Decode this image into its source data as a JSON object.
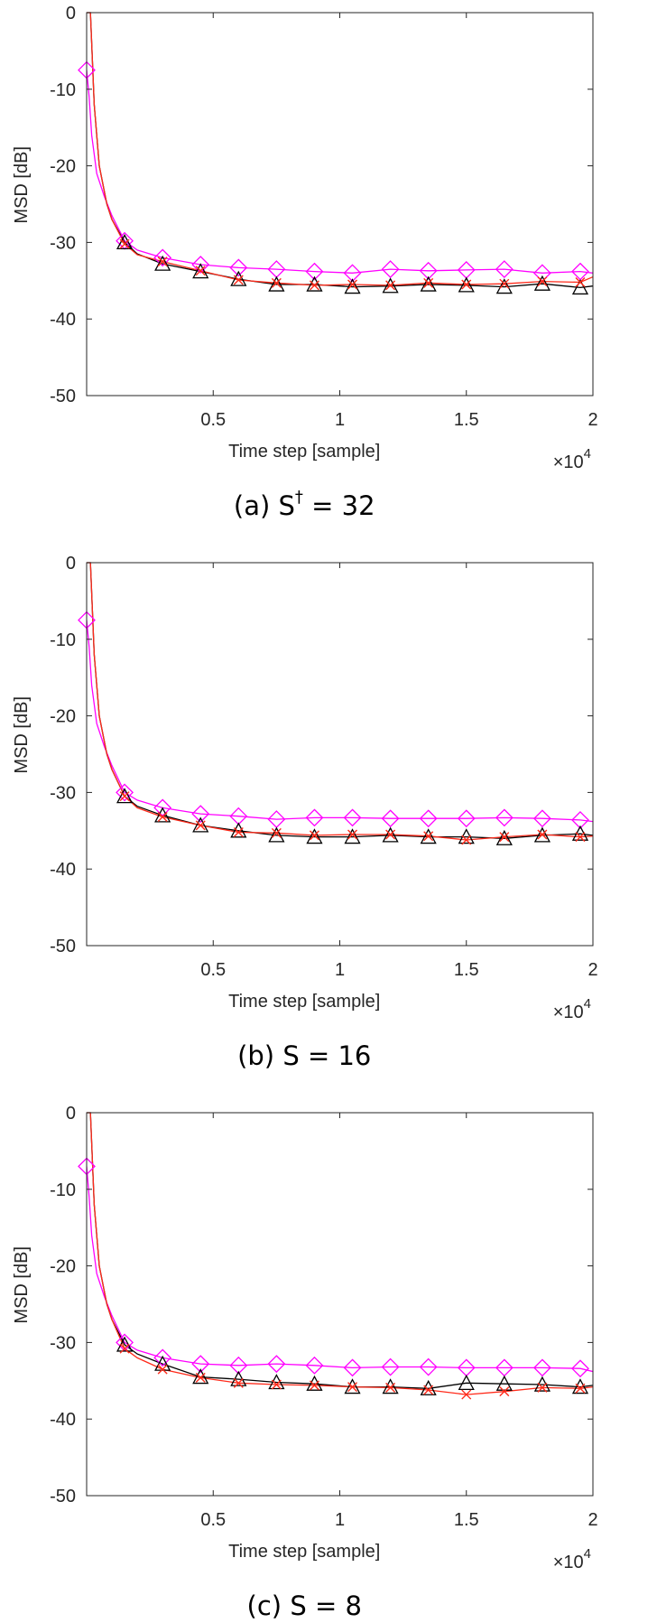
{
  "style": {
    "black_series_color": "#000000",
    "red_series_color": "#ff2a1a",
    "magenta_series_color": "#ff00ff",
    "axis_color": "#262626"
  },
  "chart_data": [
    {
      "panel": "a",
      "type": "line",
      "caption": {
        "prefix": "(a) S",
        "sup": "†",
        "suffix": " = 32"
      },
      "xlabel": "Time step [sample]",
      "ylabel": "MSD [dB]",
      "xlim": [
        0,
        20000
      ],
      "ylim": [
        -50,
        0
      ],
      "x_multiplier_label": {
        "times": "×10",
        "exp": "4"
      },
      "xticks": [
        {
          "value": 5000,
          "label": "0.5"
        },
        {
          "value": 10000,
          "label": "1"
        },
        {
          "value": 15000,
          "label": "1.5"
        },
        {
          "value": 20000,
          "label": "2"
        }
      ],
      "yticks": [
        {
          "value": 0,
          "label": "0"
        },
        {
          "value": -10,
          "label": "-10"
        },
        {
          "value": -20,
          "label": "-20"
        },
        {
          "value": -30,
          "label": "-30"
        },
        {
          "value": -40,
          "label": "-40"
        },
        {
          "value": -50,
          "label": "-50"
        }
      ],
      "series": [
        {
          "name": "black-triangle",
          "marker": "triangle",
          "x": [
            0,
            150,
            300,
            500,
            800,
            1000,
            1500,
            2000,
            3000,
            4500,
            6000,
            7500,
            9000,
            10500,
            12000,
            13500,
            15000,
            16500,
            18000,
            19500,
            20000
          ],
          "y": [
            0,
            0,
            -12,
            -20,
            -25,
            -27,
            -30,
            -31.5,
            -32.8,
            -33.8,
            -34.8,
            -35.5,
            -35.5,
            -35.8,
            -35.7,
            -35.5,
            -35.6,
            -35.8,
            -35.4,
            -35.9,
            -35.7
          ],
          "marker_x": [
            1500,
            3000,
            4500,
            6000,
            7500,
            9000,
            10500,
            12000,
            13500,
            15000,
            16500,
            18000,
            19500
          ],
          "marker_y": [
            -30,
            -32.8,
            -33.8,
            -34.8,
            -35.5,
            -35.5,
            -35.8,
            -35.7,
            -35.5,
            -35.6,
            -35.8,
            -35.4,
            -35.9
          ]
        },
        {
          "name": "red-cross",
          "marker": "cross",
          "x": [
            0,
            150,
            300,
            500,
            800,
            1000,
            1500,
            2000,
            3000,
            4500,
            6000,
            7500,
            9000,
            10500,
            12000,
            13500,
            15000,
            16500,
            18000,
            19500,
            20000
          ],
          "y": [
            0,
            0,
            -12,
            -20,
            -25,
            -27,
            -30.2,
            -31.6,
            -32.5,
            -33.7,
            -34.9,
            -35.3,
            -35.6,
            -35.5,
            -35.6,
            -35.3,
            -35.5,
            -35.4,
            -35.1,
            -35.2,
            -34.5
          ],
          "marker_x": [
            1500,
            3000,
            4500,
            6000,
            7500,
            9000,
            10500,
            12000,
            13500,
            15000,
            16500,
            18000,
            19500
          ],
          "marker_y": [
            -30.2,
            -32.5,
            -33.7,
            -34.9,
            -35.3,
            -35.6,
            -35.5,
            -35.6,
            -35.3,
            -35.5,
            -35.4,
            -35.1,
            -35.2
          ]
        },
        {
          "name": "magenta-diamond",
          "marker": "diamond",
          "x": [
            0,
            100,
            200,
            400,
            700,
            1000,
            1500,
            2000,
            3000,
            4500,
            6000,
            7500,
            9000,
            10500,
            12000,
            13500,
            15000,
            16500,
            18000,
            19500,
            20000
          ],
          "y": [
            -7.5,
            -11,
            -16,
            -21,
            -24,
            -26.5,
            -29.8,
            -31,
            -32,
            -32.9,
            -33.3,
            -33.5,
            -33.8,
            -34,
            -33.5,
            -33.7,
            -33.6,
            -33.5,
            -34,
            -33.8,
            -34
          ],
          "marker_x": [
            0,
            1500,
            3000,
            4500,
            6000,
            7500,
            9000,
            10500,
            12000,
            13500,
            15000,
            16500,
            18000,
            19500
          ],
          "marker_y": [
            -7.5,
            -29.8,
            -32,
            -32.9,
            -33.3,
            -33.5,
            -33.8,
            -34,
            -33.5,
            -33.7,
            -33.6,
            -33.5,
            -34,
            -33.8
          ]
        }
      ]
    },
    {
      "panel": "b",
      "type": "line",
      "caption": {
        "prefix": "(b) S",
        "sup": "",
        "suffix": " = 16"
      },
      "xlabel": "Time step [sample]",
      "ylabel": "MSD [dB]",
      "xlim": [
        0,
        20000
      ],
      "ylim": [
        -50,
        0
      ],
      "x_multiplier_label": {
        "times": "×10",
        "exp": "4"
      },
      "xticks": [
        {
          "value": 5000,
          "label": "0.5"
        },
        {
          "value": 10000,
          "label": "1"
        },
        {
          "value": 15000,
          "label": "1.5"
        },
        {
          "value": 20000,
          "label": "2"
        }
      ],
      "yticks": [
        {
          "value": 0,
          "label": "0"
        },
        {
          "value": -10,
          "label": "-10"
        },
        {
          "value": -20,
          "label": "-20"
        },
        {
          "value": -30,
          "label": "-30"
        },
        {
          "value": -40,
          "label": "-40"
        },
        {
          "value": -50,
          "label": "-50"
        }
      ],
      "series": [
        {
          "name": "black-triangle",
          "marker": "triangle",
          "x": [
            0,
            150,
            300,
            500,
            800,
            1000,
            1500,
            2000,
            3000,
            4500,
            6000,
            7500,
            9000,
            10500,
            12000,
            13500,
            15000,
            16500,
            18000,
            19500,
            20000
          ],
          "y": [
            0,
            0,
            -12,
            -20,
            -25,
            -27,
            -30.5,
            -31.8,
            -33,
            -34.3,
            -35,
            -35.6,
            -35.8,
            -35.8,
            -35.6,
            -35.8,
            -35.8,
            -36,
            -35.6,
            -35.4,
            -35.6
          ],
          "marker_x": [
            1500,
            3000,
            4500,
            6000,
            7500,
            9000,
            10500,
            12000,
            13500,
            15000,
            16500,
            18000,
            19500
          ],
          "marker_y": [
            -30.5,
            -33,
            -34.3,
            -35,
            -35.6,
            -35.8,
            -35.8,
            -35.6,
            -35.8,
            -35.8,
            -36,
            -35.6,
            -35.4
          ]
        },
        {
          "name": "red-cross",
          "marker": "cross",
          "x": [
            0,
            150,
            300,
            500,
            800,
            1000,
            1500,
            2000,
            3000,
            4500,
            6000,
            7500,
            9000,
            10500,
            12000,
            13500,
            15000,
            16500,
            18000,
            19500,
            20000
          ],
          "y": [
            0,
            0,
            -12,
            -20,
            -25,
            -27,
            -30.5,
            -32,
            -33.2,
            -34.3,
            -35.2,
            -35.3,
            -35.6,
            -35.5,
            -35.5,
            -35.7,
            -36.2,
            -35.8,
            -35.5,
            -35.8,
            -35.7
          ],
          "marker_x": [
            1500,
            3000,
            4500,
            6000,
            7500,
            9000,
            10500,
            12000,
            13500,
            15000,
            16500,
            18000,
            19500
          ],
          "marker_y": [
            -30.5,
            -33.2,
            -34.3,
            -35.2,
            -35.3,
            -35.6,
            -35.5,
            -35.5,
            -35.7,
            -36.2,
            -35.8,
            -35.5,
            -35.8
          ]
        },
        {
          "name": "magenta-diamond",
          "marker": "diamond",
          "x": [
            0,
            100,
            200,
            400,
            700,
            1000,
            1500,
            2000,
            3000,
            4500,
            6000,
            7500,
            9000,
            10500,
            12000,
            13500,
            15000,
            16500,
            18000,
            19500,
            20000
          ],
          "y": [
            -7.5,
            -11,
            -16,
            -21,
            -24,
            -26.5,
            -30,
            -31,
            -32,
            -32.8,
            -33.1,
            -33.5,
            -33.3,
            -33.3,
            -33.4,
            -33.4,
            -33.4,
            -33.3,
            -33.4,
            -33.6,
            -33.8
          ],
          "marker_x": [
            0,
            1500,
            3000,
            4500,
            6000,
            7500,
            9000,
            10500,
            12000,
            13500,
            15000,
            16500,
            18000,
            19500
          ],
          "marker_y": [
            -7.5,
            -30,
            -32,
            -32.8,
            -33.1,
            -33.5,
            -33.3,
            -33.3,
            -33.4,
            -33.4,
            -33.4,
            -33.3,
            -33.4,
            -33.6
          ]
        }
      ]
    },
    {
      "panel": "c",
      "type": "line",
      "caption": {
        "prefix": "(c) S",
        "sup": "",
        "suffix": " = 8"
      },
      "xlabel": "Time step [sample]",
      "ylabel": "MSD [dB]",
      "xlim": [
        0,
        20000
      ],
      "ylim": [
        -50,
        0
      ],
      "x_multiplier_label": {
        "times": "×10",
        "exp": "4"
      },
      "xticks": [
        {
          "value": 5000,
          "label": "0.5"
        },
        {
          "value": 10000,
          "label": "1"
        },
        {
          "value": 15000,
          "label": "1.5"
        },
        {
          "value": 20000,
          "label": "2"
        }
      ],
      "yticks": [
        {
          "value": 0,
          "label": "0"
        },
        {
          "value": -10,
          "label": "-10"
        },
        {
          "value": -20,
          "label": "-20"
        },
        {
          "value": -30,
          "label": "-30"
        },
        {
          "value": -40,
          "label": "-40"
        },
        {
          "value": -50,
          "label": "-50"
        }
      ],
      "series": [
        {
          "name": "black-triangle",
          "marker": "triangle",
          "x": [
            0,
            150,
            300,
            500,
            800,
            1000,
            1500,
            2000,
            3000,
            4500,
            6000,
            7500,
            9000,
            10500,
            12000,
            13500,
            15000,
            16500,
            18000,
            19500,
            20000
          ],
          "y": [
            0,
            0,
            -12,
            -20,
            -25,
            -27,
            -30.3,
            -31.5,
            -32.8,
            -34.5,
            -34.8,
            -35.2,
            -35.4,
            -35.8,
            -35.8,
            -36,
            -35.3,
            -35.4,
            -35.5,
            -35.8,
            -35.6
          ],
          "marker_x": [
            1500,
            3000,
            4500,
            6000,
            7500,
            9000,
            10500,
            12000,
            13500,
            15000,
            16500,
            18000,
            19500
          ],
          "marker_y": [
            -30.3,
            -32.8,
            -34.5,
            -34.8,
            -35.2,
            -35.4,
            -35.8,
            -35.8,
            -36,
            -35.3,
            -35.4,
            -35.5,
            -35.8
          ]
        },
        {
          "name": "red-cross",
          "marker": "cross",
          "x": [
            0,
            150,
            300,
            500,
            800,
            1000,
            1500,
            2000,
            3000,
            4500,
            6000,
            7500,
            9000,
            10500,
            12000,
            13500,
            15000,
            16500,
            18000,
            19500,
            20000
          ],
          "y": [
            0,
            0,
            -12,
            -20,
            -25,
            -27,
            -30.8,
            -32,
            -33.5,
            -34.6,
            -35.3,
            -35.5,
            -35.6,
            -35.8,
            -35.9,
            -36.2,
            -36.8,
            -36.4,
            -35.9,
            -36,
            -35.8
          ],
          "marker_x": [
            1500,
            3000,
            4500,
            6000,
            7500,
            9000,
            10500,
            12000,
            13500,
            15000,
            16500,
            18000,
            19500
          ],
          "marker_y": [
            -30.8,
            -33.5,
            -34.6,
            -35.3,
            -35.5,
            -35.6,
            -35.8,
            -35.9,
            -36.2,
            -36.8,
            -36.4,
            -35.9,
            -36
          ]
        },
        {
          "name": "magenta-diamond",
          "marker": "diamond",
          "x": [
            0,
            100,
            200,
            400,
            700,
            1000,
            1500,
            2000,
            3000,
            4500,
            6000,
            7500,
            9000,
            10500,
            12000,
            13500,
            15000,
            16500,
            18000,
            19500,
            20000
          ],
          "y": [
            -7,
            -11,
            -16,
            -21,
            -24,
            -26.5,
            -30,
            -31,
            -32,
            -32.8,
            -33,
            -32.8,
            -33,
            -33.3,
            -33.2,
            -33.2,
            -33.3,
            -33.3,
            -33.3,
            -33.4,
            -33.8
          ],
          "marker_x": [
            0,
            1500,
            3000,
            4500,
            6000,
            7500,
            9000,
            10500,
            12000,
            13500,
            15000,
            16500,
            18000,
            19500
          ],
          "marker_y": [
            -7,
            -30,
            -32,
            -32.8,
            -33,
            -32.8,
            -33,
            -33.3,
            -33.2,
            -33.2,
            -33.3,
            -33.3,
            -33.3,
            -33.4
          ]
        }
      ]
    }
  ]
}
